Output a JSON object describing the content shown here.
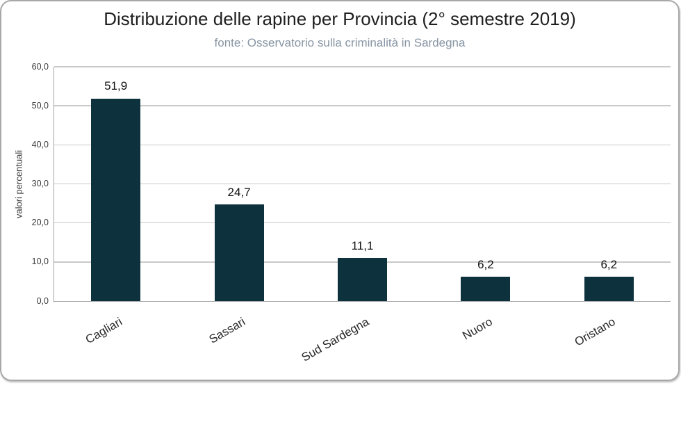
{
  "chart_data": {
    "type": "bar",
    "title": "Distribuzione delle rapine per Provincia (2° semestre 2019)",
    "subtitle": "fonte: Osservatorio sulla criminalità in Sardegna",
    "categories": [
      "Cagliari",
      "Sassari",
      "Sud Sardegna",
      "Nuoro",
      "Oristano"
    ],
    "values": [
      51.9,
      24.7,
      11.1,
      6.2,
      6.2
    ],
    "value_labels": [
      "51,9",
      "24,7",
      "11,1",
      "6,2",
      "6,2"
    ],
    "xlabel": "",
    "ylabel": "valori percentuali",
    "ylim": [
      0,
      60
    ],
    "ytick_values": [
      0,
      10,
      20,
      30,
      40,
      50,
      60
    ],
    "ytick_labels": [
      "0,0",
      "10,0",
      "20,0",
      "30,0",
      "40,0",
      "50,0",
      "60,0"
    ],
    "grid": true,
    "legend": false,
    "bar_color": "#0d323d",
    "title_color": "#1f1f1f",
    "subtitle_color": "#8795a3",
    "gridline_color": "#c9c9c9",
    "axis_color": "#a3a3a3"
  }
}
